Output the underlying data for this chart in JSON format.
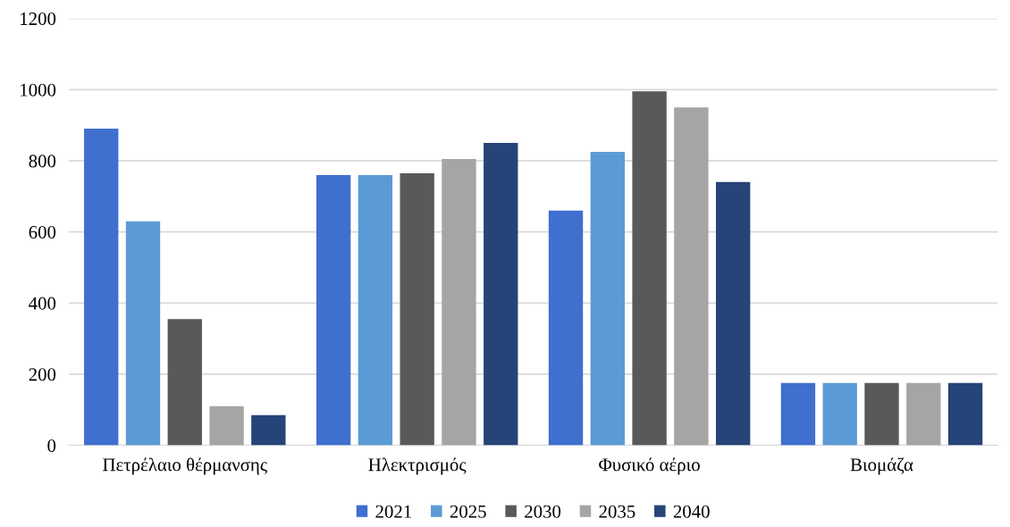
{
  "chart_data": {
    "type": "bar",
    "categories": [
      "Πετρέλαιο θέρμανσης",
      "Ηλεκτρισμός",
      "Φυσικό αέριο",
      "Βιομάζα"
    ],
    "series": [
      {
        "name": "2021",
        "color": "#3f6fcf",
        "values": [
          890,
          760,
          660,
          175
        ]
      },
      {
        "name": "2025",
        "color": "#5b9bd5",
        "values": [
          630,
          760,
          825,
          175
        ]
      },
      {
        "name": "2030",
        "color": "#595959",
        "values": [
          355,
          765,
          995,
          175
        ]
      },
      {
        "name": "2035",
        "color": "#a5a5a5",
        "values": [
          110,
          805,
          950,
          175
        ]
      },
      {
        "name": "2040",
        "color": "#264478",
        "values": [
          85,
          850,
          740,
          175
        ]
      }
    ],
    "ylim": [
      0,
      1200
    ],
    "yticks": [
      0,
      200,
      400,
      600,
      800,
      1000,
      1200
    ],
    "grid": "y",
    "legend": "bottom"
  }
}
